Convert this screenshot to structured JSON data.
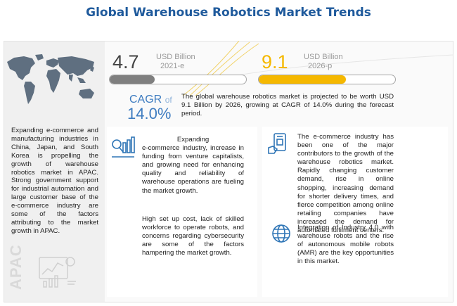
{
  "title": "Global Warehouse Robotics Market Trends",
  "market_2021": {
    "value": "4.7",
    "unit": "USD Billion",
    "year": "2021-e",
    "bar_fill_fraction": 0.33,
    "color": "#7f7f7f"
  },
  "market_2026": {
    "value": "9.1",
    "unit": "USD Billion",
    "year": "2026-p",
    "bar_fill_fraction": 0.64,
    "color": "#f5b800"
  },
  "cagr": {
    "label": "CAGR",
    "of": "of",
    "value": "14.0%",
    "description": "The global warehouse robotics market is projected to be worth USD 9.1 Billion by 2026, growing at CAGR of 14.0% during the forecast period."
  },
  "apac": {
    "label": "APAC",
    "text": "Expanding e-commerce and manufacturing industries in China, Japan, and South Korea is propelling the growth of warehouse robotics market in APAC. Strong government support for industrial automation and large customer base of the e-commerce industry are some of the factors attributing to the market growth in APAC."
  },
  "drivers": {
    "title_word": "Expanding",
    "text": "e-commerce industry, increase in funding from venture capitalists, and growing need for enhancing quality and reliability of warehouse operations are fueling the market growth."
  },
  "restraints": {
    "text": "High set up cost, lack of skilled workforce to operate robots, and concerns regarding cybersecurity are some of the factors hampering the market growth."
  },
  "ecommerce": {
    "text": "The e-commerce industry has been one of the major contributors to the growth of the warehouse robotics market. Rapidly changing customer demand, rise in online shopping, increasing demand for shorter delivery times, and fierce competition among online retailing companies have increased the demand for automated fulfilment centers."
  },
  "industry40": {
    "text": "Integration of Industry 4.0 with warehouse robots and the rise of autonomous mobile robots (AMR) are the key opportunities in this market."
  },
  "colors": {
    "title": "#1f5a9c",
    "cagr": "#3e7cc0",
    "accent_yellow": "#f5b800",
    "icon_blue": "#2e75b6"
  }
}
